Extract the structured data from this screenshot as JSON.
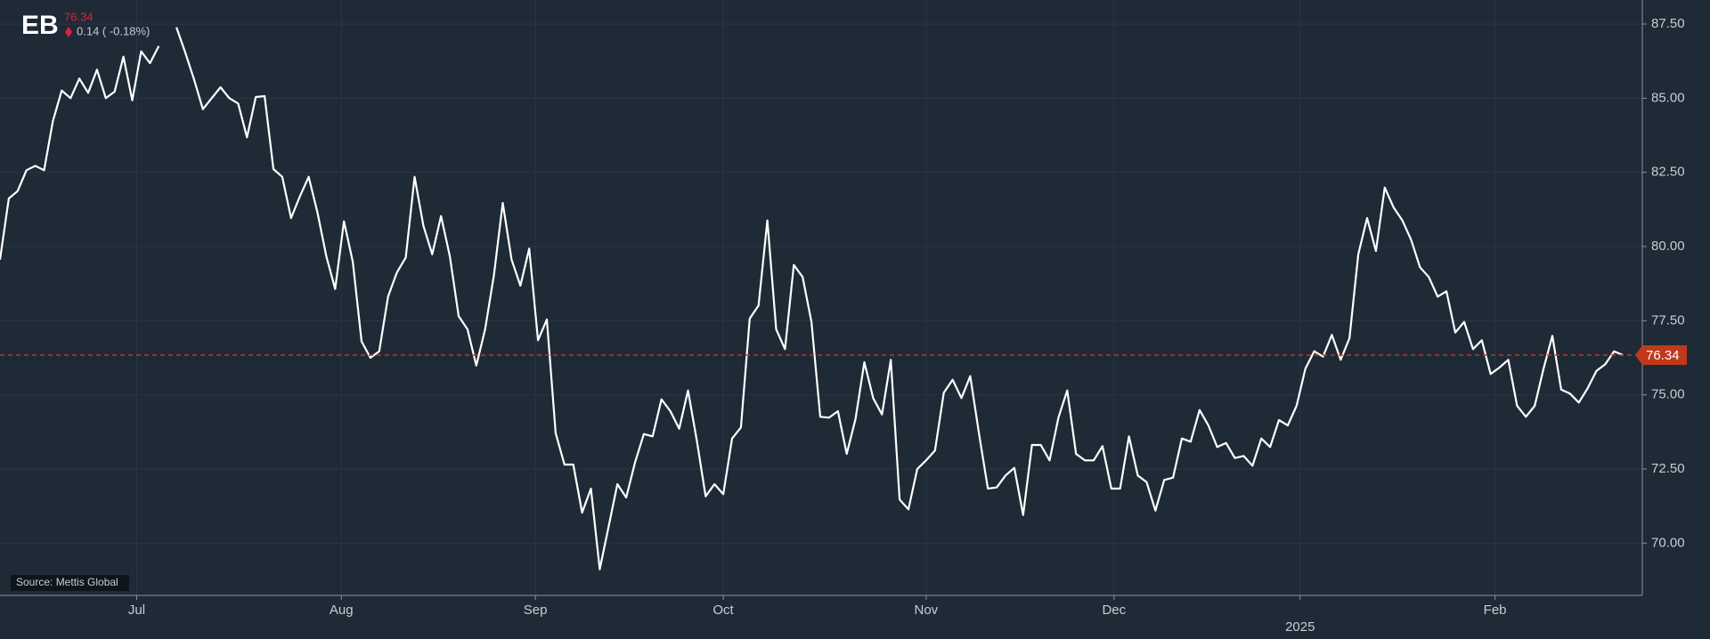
{
  "chart_data": {
    "type": "line",
    "symbol": "EB",
    "price": 76.34,
    "change": "0.14 ( -0.18%)",
    "source": "Source: Mettis Global",
    "line_color": "#ffffff",
    "price_color": "#c0391b",
    "grid": true,
    "ylim": [
      68.24,
      88.31
    ],
    "yticks": [
      {
        "value": 70,
        "label": "70.00"
      },
      {
        "value": 72.5,
        "label": "72.50"
      },
      {
        "value": 75,
        "label": "75.00"
      },
      {
        "value": 77.5,
        "label": "77.50"
      },
      {
        "value": 80,
        "label": "80.00"
      },
      {
        "value": 82.5,
        "label": "82.50"
      },
      {
        "value": 85,
        "label": "85.00"
      },
      {
        "value": 87.5,
        "label": "87.50"
      }
    ],
    "xlim": [
      0,
      186.2
    ],
    "xticks": [
      {
        "value": 15.5,
        "label": "Jul"
      },
      {
        "value": 38.7,
        "label": "Aug"
      },
      {
        "value": 60.7,
        "label": "Sep"
      },
      {
        "value": 82.0,
        "label": "Oct"
      },
      {
        "value": 105.0,
        "label": "Nov"
      },
      {
        "value": 126.3,
        "label": "Dec"
      },
      {
        "value": 147.4,
        "label": "2025"
      },
      {
        "value": 169.5,
        "label": "Feb"
      }
    ],
    "year_tick_index": 6,
    "values": [
      79.56,
      81.62,
      81.87,
      82.57,
      82.72,
      82.57,
      84.23,
      85.26,
      85.0,
      85.66,
      85.18,
      85.96,
      85.0,
      85.22,
      86.4,
      84.93,
      86.58,
      86.18,
      86.76,
      null,
      87.39,
      86.54,
      85.63,
      84.63,
      85.0,
      85.37,
      85.0,
      84.82,
      83.68,
      85.04,
      85.07,
      82.61,
      82.35,
      80.96,
      81.69,
      82.35,
      81.14,
      79.67,
      78.57,
      80.85,
      79.49,
      76.8,
      76.25,
      76.47,
      78.31,
      79.12,
      79.63,
      82.35,
      80.7,
      79.74,
      81.03,
      79.67,
      77.65,
      77.21,
      75.99,
      77.21,
      79.04,
      81.47,
      79.56,
      78.68,
      79.93,
      76.84,
      77.54,
      73.71,
      72.65,
      72.65,
      71.03,
      71.84,
      69.12,
      70.55,
      71.99,
      71.54,
      72.72,
      73.68,
      73.6,
      74.85,
      74.45,
      73.86,
      75.15,
      73.46,
      71.58,
      71.99,
      71.65,
      73.53,
      73.9,
      77.57,
      78.01,
      80.88,
      77.21,
      76.54,
      79.38,
      78.97,
      77.46,
      74.26,
      74.23,
      74.45,
      73.01,
      74.19,
      76.1,
      74.89,
      74.34,
      76.18,
      71.47,
      71.14,
      72.5,
      72.79,
      73.12,
      75.07,
      75.51,
      74.89,
      75.63,
      73.68,
      71.84,
      71.88,
      72.28,
      72.54,
      70.95,
      73.31,
      73.31,
      72.79,
      74.23,
      75.15,
      73.01,
      72.79,
      72.79,
      73.27,
      71.84,
      71.84,
      73.6,
      72.28,
      72.06,
      71.1,
      72.13,
      72.21,
      73.53,
      73.42,
      74.49,
      73.97,
      73.24,
      73.38,
      72.87,
      72.94,
      72.61,
      73.53,
      73.24,
      74.15,
      73.97,
      74.63,
      75.88,
      76.47,
      76.29,
      77.02,
      76.18,
      76.91,
      79.74,
      80.96,
      79.85,
      81.99,
      81.32,
      80.88,
      80.22,
      79.3,
      78.97,
      78.31,
      78.49,
      77.1,
      77.46,
      76.54,
      76.84,
      75.7,
      75.92,
      76.18,
      74.63,
      74.26,
      74.63,
      75.88,
      76.99,
      75.18,
      75.04,
      74.74,
      75.22,
      75.81,
      76.03,
      76.47,
      76.34
    ]
  }
}
